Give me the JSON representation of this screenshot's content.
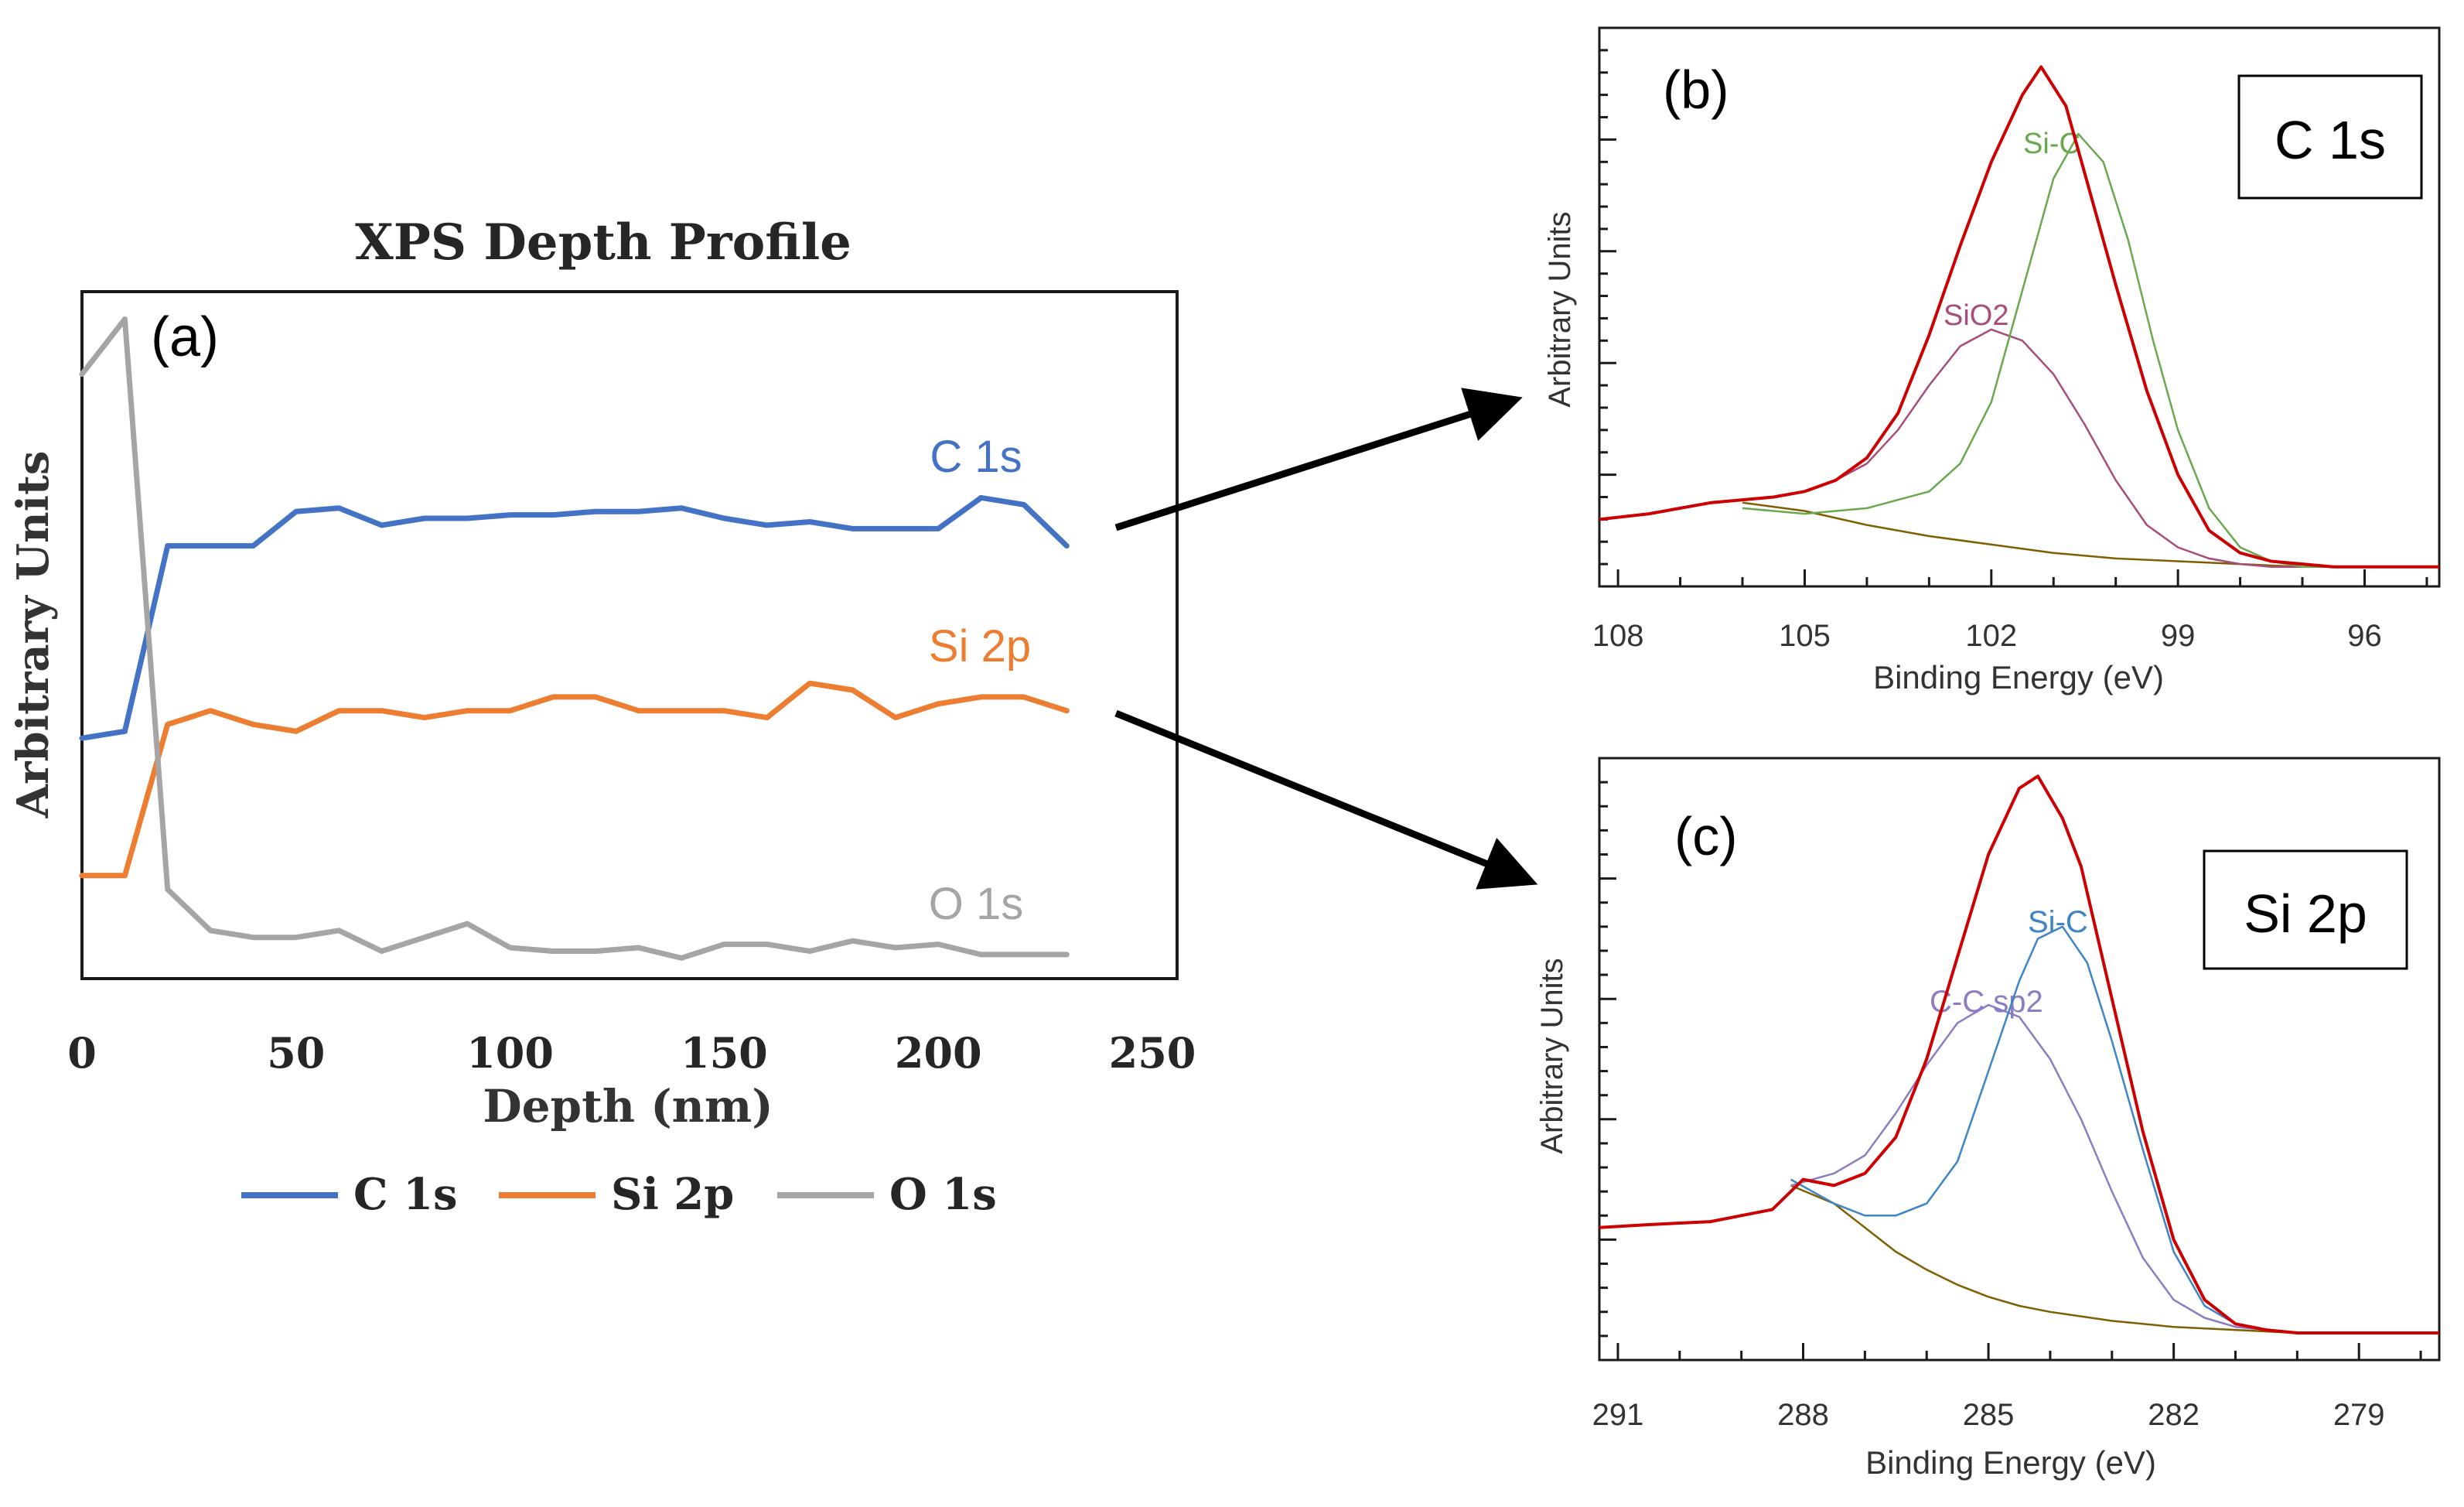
{
  "chart_data": [
    {
      "panel_label": "(a)",
      "type": "line",
      "title": "XPS Depth Profile",
      "xlabel": "Depth (nm)",
      "ylabel": "Arbitrary Units",
      "xlim": [
        0,
        250
      ],
      "ylim": [
        0,
        100
      ],
      "xticks": [
        "0",
        "50",
        "100",
        "150",
        "200",
        "250"
      ],
      "grid": false,
      "legend_position": "bottom",
      "x": [
        0,
        10,
        20,
        30,
        40,
        50,
        60,
        70,
        80,
        90,
        100,
        110,
        120,
        130,
        140,
        150,
        160,
        170,
        180,
        190,
        200,
        210,
        220,
        230
      ],
      "series": [
        {
          "name": "C 1s",
          "label": "C 1s",
          "color": "#4472c4",
          "values": [
            35,
            36,
            63,
            63,
            63,
            68,
            68.5,
            66,
            67,
            67,
            67.5,
            67.5,
            68,
            68,
            68.5,
            67,
            66,
            66.5,
            65.5,
            65.5,
            65.5,
            70,
            69,
            63
          ]
        },
        {
          "name": "Si 2p",
          "label": "Si 2p",
          "color": "#ed7d31",
          "values": [
            15,
            15,
            37,
            39,
            37,
            36,
            39,
            39,
            38,
            39,
            39,
            41,
            41,
            39,
            39,
            39,
            38,
            43,
            42,
            38,
            40,
            41,
            41,
            39
          ]
        },
        {
          "name": "O 1s",
          "label": "O 1s",
          "color": "#a5a5a5",
          "values": [
            88,
            96,
            13,
            7,
            6,
            6,
            7,
            4,
            6,
            8,
            4.5,
            4,
            4,
            4.5,
            3,
            5,
            5,
            4,
            5.5,
            4.5,
            5,
            3.5,
            3.5,
            3.5
          ]
        }
      ]
    },
    {
      "panel_label": "(b)",
      "type": "line",
      "box_label": "C 1s",
      "xlabel": "Binding Energy (eV)",
      "ylabel": "Arbitrary Units",
      "xlim": [
        108.3,
        94.8
      ],
      "ylim": [
        0,
        100
      ],
      "xticks": [
        "108",
        "105",
        "102",
        "99",
        "96"
      ],
      "grid": false,
      "annotations": [
        "Si-C",
        "SiO2"
      ],
      "series": [
        {
          "name": "envelope",
          "color": "#cc0000",
          "x": [
            108.3,
            107.5,
            107,
            106.5,
            106,
            105.5,
            105,
            104.5,
            104,
            103.5,
            103,
            102.5,
            102,
            101.5,
            101.2,
            100.8,
            100.5,
            100,
            99.5,
            99,
            98.5,
            98,
            97.5,
            97,
            96.5,
            96,
            95.5,
            94.8
          ],
          "y": [
            12,
            13,
            14,
            15,
            15.5,
            16,
            17,
            19,
            23,
            31,
            45,
            61,
            76,
            88,
            93,
            86,
            74,
            54,
            35,
            20,
            10,
            6,
            4.5,
            4,
            3.5,
            3.5,
            3.5,
            3.5
          ]
        },
        {
          "name": "Si-C component",
          "color": "#6aa84f",
          "x": [
            106,
            105,
            104,
            103,
            102.5,
            102,
            101.5,
            101,
            100.6,
            100.2,
            99.8,
            99.4,
            99,
            98.5,
            98,
            97.5,
            97,
            96.5
          ],
          "y": [
            14,
            13,
            14,
            17,
            22,
            33,
            53,
            73,
            81,
            76,
            62,
            44,
            28,
            14,
            7,
            4.5,
            3.5,
            3.5
          ]
        },
        {
          "name": "SiO2 component",
          "color": "#a64d79",
          "x": [
            105.5,
            105,
            104.5,
            104,
            103.5,
            103,
            102.5,
            102,
            101.5,
            101,
            100.5,
            100,
            99.5,
            99,
            98.5,
            98,
            97.5,
            97,
            96.5
          ],
          "y": [
            16,
            17,
            19,
            22,
            28,
            36,
            43,
            46,
            44,
            38,
            29,
            19,
            11,
            7,
            5,
            4,
            3.5,
            3.5,
            3.5
          ]
        },
        {
          "name": "background",
          "color": "#7f5f00",
          "x": [
            106,
            105,
            104,
            103,
            102,
            101,
            100,
            99,
            98,
            97,
            96.5
          ],
          "y": [
            15,
            13.5,
            11,
            9,
            7.5,
            6,
            5,
            4.5,
            4,
            3.5,
            3.5
          ]
        }
      ]
    },
    {
      "panel_label": "(c)",
      "type": "line",
      "box_label": "Si 2p",
      "xlabel": "Binding Energy (eV)",
      "ylabel": "Arbitrary Units",
      "xlim": [
        291.3,
        277.7
      ],
      "ylim": [
        0,
        100
      ],
      "xticks": [
        "291",
        "288",
        "285",
        "282",
        "279"
      ],
      "grid": false,
      "annotations": [
        "Si-C",
        "C-C sp2"
      ],
      "series": [
        {
          "name": "envelope",
          "color": "#cc0000",
          "x": [
            291.3,
            290.5,
            289.5,
            288.5,
            288,
            287.5,
            287,
            286.5,
            286,
            285.5,
            285,
            284.5,
            284.2,
            283.8,
            283.5,
            283,
            282.5,
            282,
            281.5,
            281,
            280.5,
            280,
            279.5,
            279,
            278.5,
            277.7
          ],
          "y": [
            22,
            22.5,
            23,
            25,
            30,
            29,
            31,
            37,
            50,
            67,
            84,
            95,
            97,
            90,
            82,
            60,
            38,
            20,
            10,
            6,
            5,
            4.5,
            4.5,
            4.5,
            4.5,
            4.5
          ]
        },
        {
          "name": "Si-C component",
          "color": "#3d85c6",
          "x": [
            288.2,
            287.5,
            287,
            286.5,
            286,
            285.5,
            285,
            284.5,
            284.2,
            283.8,
            283.4,
            283,
            282.5,
            282,
            281.5,
            281,
            280.5,
            280
          ],
          "y": [
            30,
            26,
            24,
            24,
            26,
            33,
            48,
            63,
            70,
            72,
            66,
            53,
            35,
            18,
            9,
            6,
            5,
            4.5
          ]
        },
        {
          "name": "C-C sp2 component",
          "color": "#8e7cc3",
          "x": [
            288.2,
            287.5,
            287,
            286.5,
            286,
            285.5,
            285,
            284.5,
            284,
            283.5,
            283,
            282.5,
            282,
            281.5,
            281,
            280.5
          ],
          "y": [
            29,
            31,
            34,
            41,
            49,
            56,
            59,
            57,
            50,
            40,
            28,
            17,
            10,
            7,
            5.5,
            5
          ]
        },
        {
          "name": "background",
          "color": "#7f5f00",
          "x": [
            288.2,
            287.5,
            287,
            286.5,
            286,
            285.5,
            285,
            284.5,
            284,
            283,
            282,
            281,
            280,
            279.5
          ],
          "y": [
            29,
            26,
            22,
            18,
            15,
            12.5,
            10.5,
            9,
            8,
            6.5,
            5.5,
            5,
            4.5,
            4.5
          ]
        }
      ]
    }
  ]
}
